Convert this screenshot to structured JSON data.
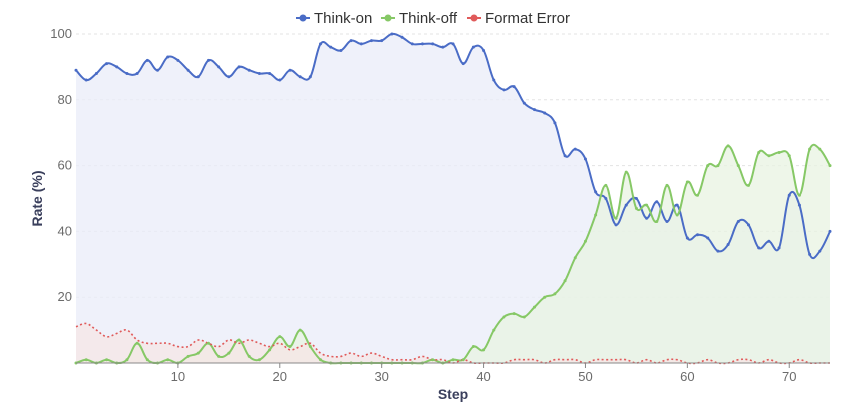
{
  "chart_data": {
    "type": "line",
    "xlabel": "Step",
    "ylabel": "Rate (%)",
    "xlim": [
      0,
      74
    ],
    "ylim": [
      0,
      100
    ],
    "x_ticks": [
      10,
      20,
      30,
      40,
      50,
      60,
      70
    ],
    "y_ticks": [
      20,
      40,
      60,
      80,
      100
    ],
    "grid": "horizontal dashed",
    "legend_position": "top-center",
    "area_fill": true,
    "x": [
      0,
      1,
      2,
      3,
      4,
      5,
      6,
      7,
      8,
      9,
      10,
      11,
      12,
      13,
      14,
      15,
      16,
      17,
      18,
      19,
      20,
      21,
      22,
      23,
      24,
      25,
      26,
      27,
      28,
      29,
      30,
      31,
      32,
      33,
      34,
      35,
      36,
      37,
      38,
      39,
      40,
      41,
      42,
      43,
      44,
      45,
      46,
      47,
      48,
      49,
      50,
      51,
      52,
      53,
      54,
      55,
      56,
      57,
      58,
      59,
      60,
      61,
      62,
      63,
      64,
      65,
      66,
      67,
      68,
      69,
      70,
      71,
      72,
      73,
      74
    ],
    "series": [
      {
        "name": "Think-on",
        "color": "#4a6cc6",
        "fill": "#e9ecf8",
        "line_style": "solid",
        "values": [
          89,
          86,
          88,
          91,
          90,
          88,
          88,
          92,
          89,
          93,
          92,
          89,
          87,
          92,
          90,
          87,
          90,
          89,
          88,
          88,
          86,
          89,
          87,
          87,
          97,
          96,
          95,
          98,
          97,
          98,
          98,
          100,
          99,
          97,
          97,
          97,
          96,
          97,
          91,
          96,
          95,
          86,
          83,
          84,
          79,
          77,
          76,
          73,
          63,
          65,
          62,
          52,
          50,
          42,
          48,
          50,
          44,
          49,
          43,
          48,
          38,
          39,
          38,
          34,
          36,
          43,
          42,
          35,
          37,
          35,
          51,
          48,
          33,
          34,
          40
        ]
      },
      {
        "name": "Think-off",
        "color": "#86c866",
        "fill": "#e8f3e2",
        "line_style": "solid",
        "values": [
          0,
          1,
          0,
          1,
          0,
          1,
          6,
          1,
          0,
          1,
          0,
          2,
          3,
          6,
          2,
          3,
          7,
          2,
          1,
          4,
          8,
          5,
          10,
          5,
          1,
          0,
          0,
          0,
          0,
          0,
          0,
          0,
          0,
          0,
          0,
          1,
          0,
          1,
          1,
          5,
          4,
          10,
          14,
          15,
          14,
          17,
          20,
          21,
          25,
          32,
          37,
          45,
          54,
          44,
          58,
          47,
          48,
          43,
          54,
          45,
          55,
          51,
          60,
          60,
          66,
          60,
          54,
          64,
          63,
          64,
          63,
          51,
          65,
          65,
          60
        ]
      },
      {
        "name": "Format Error",
        "color": "#e05a5a",
        "fill": "#f5e6e6",
        "line_style": "dotted",
        "values": [
          11,
          12,
          10,
          8,
          9,
          10,
          7,
          6,
          6,
          6,
          5,
          5,
          7,
          6,
          5,
          7,
          6,
          7,
          6,
          5,
          6,
          4,
          5,
          6,
          3,
          2,
          2,
          3,
          2,
          3,
          2,
          1,
          1,
          1,
          2,
          1,
          1,
          0,
          1,
          0,
          0,
          0,
          0,
          1,
          1,
          1,
          0,
          1,
          1,
          1,
          0,
          1,
          1,
          1,
          1,
          0,
          1,
          0,
          1,
          1,
          0,
          0,
          1,
          0,
          0,
          1,
          1,
          0,
          1,
          0,
          0,
          1,
          0,
          0,
          0
        ]
      }
    ]
  }
}
